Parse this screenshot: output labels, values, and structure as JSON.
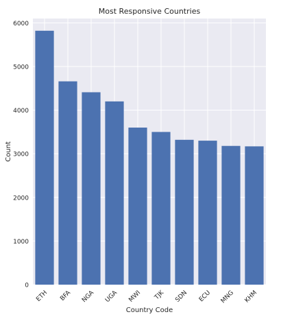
{
  "chart_data": {
    "type": "bar",
    "title": "Most Responsive Countries",
    "xlabel": "Country Code",
    "ylabel": "Count",
    "categories": [
      "ETH",
      "BFA",
      "NGA",
      "UGA",
      "MWI",
      "TJK",
      "SDN",
      "ECU",
      "MNG",
      "KHM"
    ],
    "values": [
      5820,
      4660,
      4410,
      4200,
      3600,
      3500,
      3320,
      3300,
      3180,
      3170
    ],
    "ylim": [
      0,
      6100
    ],
    "yticks": [
      0,
      1000,
      2000,
      3000,
      4000,
      5000,
      6000
    ],
    "grid": true,
    "legend": "none",
    "bar_color": "#4c72b0",
    "plot_background": "#eaeaf2",
    "grid_color": "#ffffff"
  }
}
